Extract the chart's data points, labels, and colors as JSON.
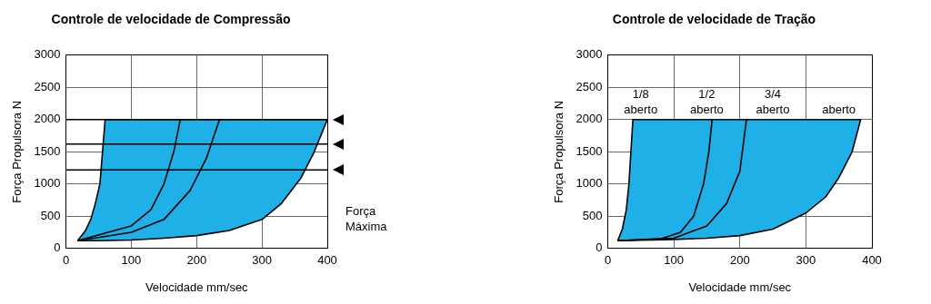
{
  "chart_data": [
    {
      "type": "area",
      "title": "Controle de velocidade de Compressão",
      "xlabel": "Velocidade mm/sec",
      "ylabel": "Força Propulsora N",
      "xlim": [
        0,
        400
      ],
      "xticks": [
        0,
        100,
        200,
        300,
        400
      ],
      "ylim": [
        0,
        3000
      ],
      "yticks": [
        0,
        500,
        1000,
        1500,
        2000,
        2500,
        3000
      ],
      "grid": true,
      "series": [
        {
          "type": "area",
          "color": "#1eb0e6",
          "x": [
            18,
            50,
            100,
            150,
            200,
            250,
            300,
            330,
            360,
            380,
            400,
            60,
            56,
            52,
            45,
            38,
            30,
            18
          ],
          "values": [
            120,
            120,
            130,
            160,
            200,
            280,
            450,
            700,
            1100,
            1500,
            2000,
            2000,
            1500,
            1000,
            700,
            450,
            280,
            120
          ]
        },
        {
          "type": "line",
          "color": "#000000",
          "x": [
            18,
            100,
            130,
            150,
            165,
            175
          ],
          "values": [
            120,
            350,
            600,
            1000,
            1500,
            2000
          ]
        },
        {
          "type": "line",
          "color": "#000000",
          "x": [
            18,
            100,
            150,
            190,
            215,
            235
          ],
          "values": [
            120,
            250,
            450,
            900,
            1400,
            2000
          ]
        }
      ],
      "ref_lines": [
        {
          "axis": "y",
          "value": 2000,
          "color": "#000000"
        },
        {
          "axis": "y",
          "value": 1620,
          "color": "#000000"
        },
        {
          "axis": "y",
          "value": 1220,
          "color": "#000000"
        }
      ],
      "annotations": [
        "Força\nMáxima"
      ]
    },
    {
      "type": "area",
      "title": "Controle de velocidade de Tração",
      "xlabel": "Velocidade mm/sec",
      "ylabel": "Força Propulsora N",
      "xlim": [
        0,
        400
      ],
      "xticks": [
        0,
        100,
        200,
        300,
        400
      ],
      "ylim": [
        0,
        3000
      ],
      "yticks": [
        0,
        500,
        1000,
        1500,
        2000,
        2500,
        3000
      ],
      "grid": true,
      "series": [
        {
          "type": "area",
          "color": "#1eb0e6",
          "x": [
            15,
            100,
            150,
            200,
            250,
            300,
            330,
            350,
            370,
            383,
            38,
            35,
            32,
            28,
            22,
            15
          ],
          "values": [
            120,
            140,
            160,
            200,
            300,
            550,
            800,
            1100,
            1500,
            2000,
            2000,
            1500,
            1000,
            600,
            300,
            120
          ]
        },
        {
          "type": "line",
          "color": "#000000",
          "x": [
            15,
            80,
            110,
            130,
            145,
            153,
            158
          ],
          "values": [
            120,
            150,
            250,
            500,
            1000,
            1500,
            2000
          ]
        },
        {
          "type": "line",
          "color": "#000000",
          "x": [
            15,
            100,
            150,
            180,
            200,
            210
          ],
          "values": [
            120,
            160,
            350,
            700,
            1200,
            2000
          ]
        }
      ],
      "annotations": [
        "1/8\naberto",
        "1/2\naberto",
        "3/4\naberto",
        "aberto"
      ]
    }
  ]
}
